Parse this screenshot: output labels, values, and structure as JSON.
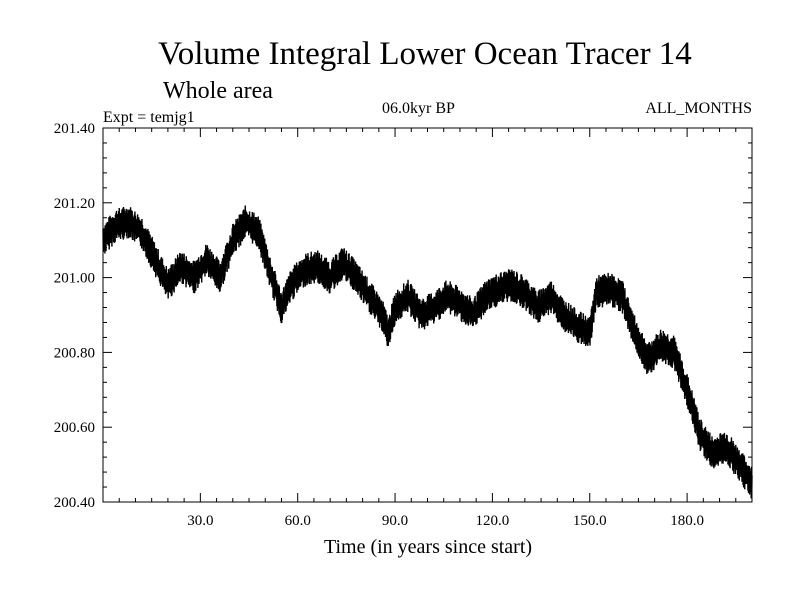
{
  "chart_data": {
    "type": "line",
    "title": "Volume Integral Lower Ocean Tracer 14",
    "subtitle": "Whole area",
    "expt_label": "Expt = temjg1",
    "period_label": "06.0kyr BP",
    "months_label": "ALL_MONTHS",
    "xlabel": "Time (in years since start)",
    "ylabel": "",
    "xlim": [
      0,
      200
    ],
    "ylim": [
      200.4,
      201.4
    ],
    "x_ticks": [
      30,
      60,
      90,
      120,
      150,
      180
    ],
    "x_tick_labels": [
      "30.0",
      "60.0",
      "90.0",
      "120.0",
      "150.0",
      "180.0"
    ],
    "y_ticks": [
      200.4,
      200.6,
      200.8,
      201.0,
      201.2,
      201.4
    ],
    "y_tick_labels": [
      "200.40",
      "200.60",
      "200.80",
      "201.00",
      "201.20",
      "201.40"
    ],
    "grid": false,
    "series": [
      {
        "name": "Volume Integral Lower Ocean Tracer 14",
        "color": "#000000",
        "amplitude": 0.045,
        "x": [
          0,
          4,
          8,
          12,
          16,
          20,
          24,
          28,
          32,
          36,
          40,
          44,
          48,
          52,
          55,
          58,
          62,
          66,
          70,
          74,
          78,
          82,
          86,
          88,
          90,
          94,
          98,
          102,
          106,
          110,
          114,
          118,
          122,
          126,
          130,
          134,
          138,
          142,
          146,
          150,
          152,
          156,
          160,
          164,
          168,
          172,
          176,
          180,
          184,
          188,
          192,
          196,
          200
        ],
        "values": [
          201.1,
          201.14,
          201.15,
          201.12,
          201.05,
          200.98,
          201.03,
          201.0,
          201.05,
          201.0,
          201.1,
          201.15,
          201.12,
          201.0,
          200.92,
          200.98,
          201.02,
          201.03,
          201.0,
          201.04,
          201.0,
          200.95,
          200.9,
          200.85,
          200.92,
          200.95,
          200.9,
          200.92,
          200.95,
          200.93,
          200.9,
          200.95,
          200.97,
          200.98,
          200.96,
          200.92,
          200.95,
          200.9,
          200.87,
          200.85,
          200.96,
          200.97,
          200.95,
          200.85,
          200.78,
          200.82,
          200.8,
          200.7,
          200.58,
          200.53,
          200.55,
          200.5,
          200.45
        ]
      }
    ]
  }
}
